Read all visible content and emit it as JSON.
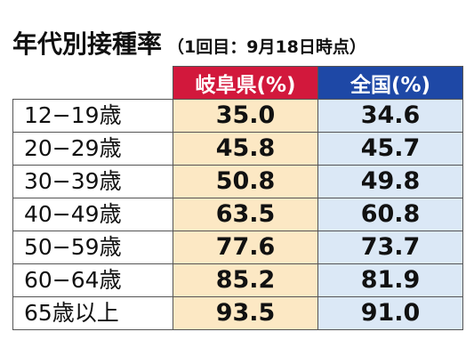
{
  "title": "年代別接種率",
  "subtitle": "（1回目：9月18日時点）",
  "headers": {
    "gifu": "岐阜県(%)",
    "national": "全国(%)"
  },
  "rows": [
    {
      "age": "12−19歳",
      "gifu": "35.0",
      "national": "34.6"
    },
    {
      "age": "20−29歳",
      "gifu": "45.8",
      "national": "45.7"
    },
    {
      "age": "30−39歳",
      "gifu": "50.8",
      "national": "49.8"
    },
    {
      "age": "40−49歳",
      "gifu": "63.5",
      "national": "60.8"
    },
    {
      "age": "50−59歳",
      "gifu": "77.6",
      "national": "73.7"
    },
    {
      "age": "60−64歳",
      "gifu": "85.2",
      "national": "81.9"
    },
    {
      "age": "65歳以上",
      "gifu": "93.5",
      "national": "91.0"
    }
  ],
  "colors": {
    "gifu_header": "#d2183c",
    "national_header": "#1e48a6",
    "gifu_cell": "#fce8c4",
    "national_cell": "#dbe8f6"
  }
}
